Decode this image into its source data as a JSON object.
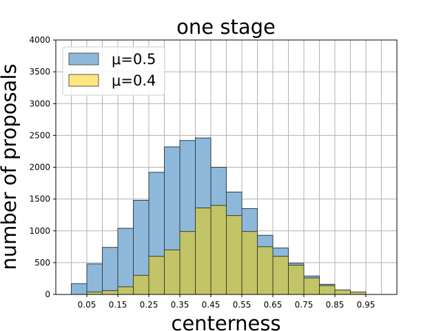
{
  "chart_data": {
    "type": "bar",
    "title": "one stage",
    "xlabel": "centerness",
    "ylabel": "number of proposals",
    "bin_width": 0.05,
    "bin_starts": [
      0.0,
      0.05,
      0.1,
      0.15,
      0.2,
      0.25,
      0.3,
      0.35,
      0.4,
      0.45,
      0.5,
      0.55,
      0.6,
      0.65,
      0.7,
      0.75,
      0.8,
      0.85,
      0.9,
      0.95
    ],
    "xlim": [
      -0.05,
      1.05
    ],
    "ylim": [
      0,
      4000
    ],
    "x_ticks": [
      "0.05",
      "0.15",
      "0.25",
      "0.35",
      "0.45",
      "0.55",
      "0.65",
      "0.75",
      "0.85",
      "0.95"
    ],
    "x_tick_values": [
      0.05,
      0.15,
      0.25,
      0.35,
      0.45,
      0.55,
      0.65,
      0.75,
      0.85,
      0.95
    ],
    "y_ticks": [
      "0",
      "500",
      "1000",
      "1500",
      "2000",
      "2500",
      "3000",
      "3500",
      "4000"
    ],
    "y_tick_values": [
      0,
      500,
      1000,
      1500,
      2000,
      2500,
      3000,
      3500,
      4000
    ],
    "grid": true,
    "x_grid_step": 0.05,
    "legend_position": "top-left",
    "series": [
      {
        "name": "μ=0.5",
        "color": "#8db8d9",
        "values": [
          170,
          480,
          740,
          1040,
          1480,
          1920,
          2320,
          2420,
          2460,
          2000,
          1610,
          1350,
          930,
          730,
          490,
          290,
          160,
          70,
          30,
          0
        ]
      },
      {
        "name": "μ=0.4",
        "color": "#ffe680",
        "values": [
          0,
          40,
          60,
          120,
          300,
          600,
          700,
          990,
          1360,
          1400,
          1240,
          990,
          750,
          600,
          460,
          260,
          140,
          70,
          40,
          0
        ]
      }
    ],
    "overlap_color": "#c3c467"
  }
}
